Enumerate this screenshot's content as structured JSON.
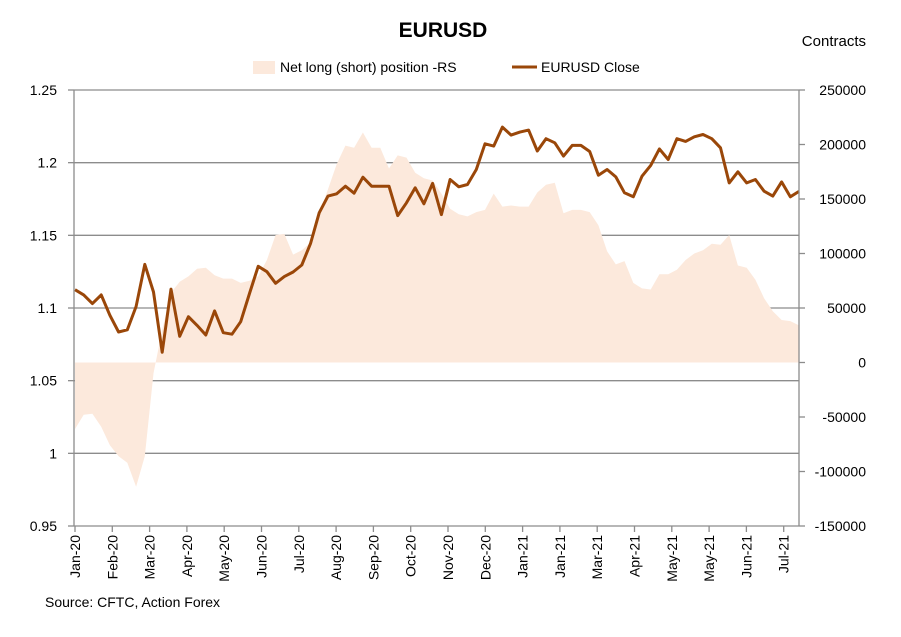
{
  "chart_data": {
    "type": "line+area",
    "title": "EURUSD",
    "right_axis_title": "Contracts",
    "source": "Source: CFTC, Action Forex",
    "legend": {
      "placement": "top-center",
      "entries": [
        "Net long (short) position -RS",
        "EURUSD Close"
      ]
    },
    "colors": {
      "area": "#FCE9DC",
      "line": "#9A4709",
      "grid": "#8C8C8C"
    },
    "left_axis": {
      "range": [
        0.95,
        1.25
      ],
      "ticks": [
        "1.25",
        "1.2",
        "1.15",
        "1.1",
        "1.05",
        "1",
        "0.95"
      ],
      "tick_values": [
        1.25,
        1.2,
        1.15,
        1.1,
        1.05,
        1.0,
        0.95
      ]
    },
    "right_axis": {
      "range": [
        -150000,
        250000
      ],
      "ticks": [
        "250000",
        "200000",
        "150000",
        "100000",
        "50000",
        "0",
        "-50000",
        "-100000",
        "-150000"
      ],
      "tick_values": [
        250000,
        200000,
        150000,
        100000,
        50000,
        0,
        -50000,
        -100000,
        -150000
      ]
    },
    "x_tick_labels": [
      "Jan-20",
      "Feb-20",
      "Mar-20",
      "Apr-20",
      "May-20",
      "Jun-20",
      "Jul-20",
      "Aug-20",
      "Sep-20",
      "Oct-20",
      "Nov-20",
      "Dec-20",
      "Jan-21",
      "Jan-21",
      "Mar-21",
      "Apr-21",
      "May-21",
      "May-21",
      "Jun-21",
      "Jul-21"
    ],
    "grid": true,
    "series": [
      {
        "name": "Net long (short) position -RS",
        "axis": "right",
        "kind": "area",
        "values": [
          -61000,
          -48000,
          -47000,
          -59000,
          -76000,
          -86000,
          -92000,
          -114000,
          -86000,
          -10000,
          30000,
          64000,
          74000,
          79000,
          86000,
          87000,
          80000,
          77000,
          77000,
          73000,
          75000,
          79000,
          94000,
          117000,
          118000,
          99000,
          103000,
          110000,
          137000,
          159000,
          182000,
          199000,
          197000,
          211000,
          197000,
          197000,
          178000,
          190000,
          188000,
          174000,
          169000,
          167000,
          155000,
          141000,
          136000,
          134000,
          138000,
          140000,
          155000,
          143000,
          144000,
          143000,
          143000,
          156000,
          163000,
          165000,
          137000,
          140000,
          140000,
          138000,
          126000,
          102000,
          90000,
          93000,
          73000,
          68000,
          67000,
          81000,
          81000,
          85000,
          94000,
          100000,
          103000,
          109000,
          108000,
          117000,
          89000,
          87000,
          76000,
          59000,
          47000,
          39000,
          38000,
          34000
        ]
      },
      {
        "name": "EURUSD Close",
        "axis": "left",
        "kind": "line",
        "values": [
          1.1126,
          1.109,
          1.103,
          1.109,
          1.095,
          1.0835,
          1.085,
          1.101,
          1.13,
          1.111,
          1.0695,
          1.113,
          1.0805,
          1.094,
          1.088,
          1.0814,
          1.098,
          1.083,
          1.082,
          1.0906,
          1.11,
          1.1287,
          1.125,
          1.117,
          1.1216,
          1.1248,
          1.1296,
          1.1443,
          1.1655,
          1.177,
          1.1786,
          1.1838,
          1.179,
          1.19,
          1.1838,
          1.1838,
          1.1838,
          1.1636,
          1.1724,
          1.1827,
          1.1717,
          1.1857,
          1.1643,
          1.1884,
          1.1834,
          1.185,
          1.1953,
          1.213,
          1.2114,
          1.2245,
          1.219,
          1.221,
          1.2224,
          1.208,
          1.2165,
          1.2137,
          1.2045,
          1.2119,
          1.2119,
          1.2077,
          1.1914,
          1.1953,
          1.1902,
          1.1793,
          1.1765,
          1.1907,
          1.1981,
          1.2095,
          1.2022,
          1.2165,
          1.2146,
          1.2178,
          1.2194,
          1.2165,
          1.2102,
          1.1861,
          1.1937,
          1.1861,
          1.1884,
          1.1804,
          1.177,
          1.1868,
          1.1765,
          1.1802
        ]
      }
    ]
  }
}
